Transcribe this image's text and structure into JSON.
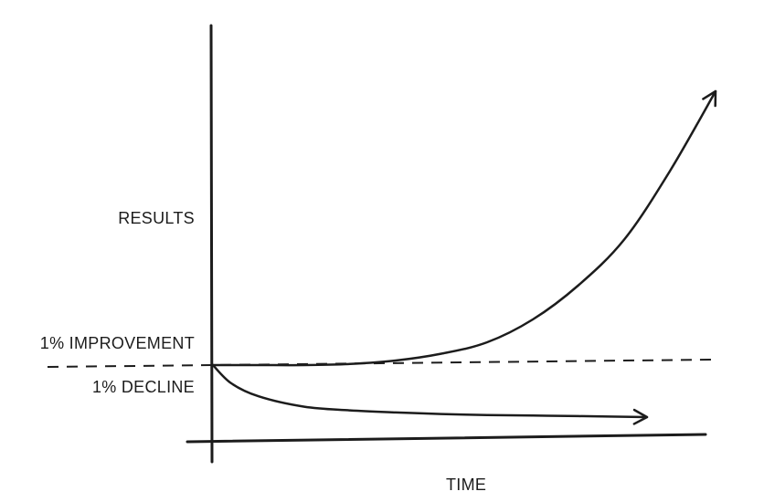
{
  "chart_data": {
    "type": "line",
    "xlabel": "TIME",
    "ylabel": "RESULTS",
    "baseline": 1.0,
    "series": [
      {
        "name": "1% IMPROVEMENT",
        "x": [
          0,
          50,
          100,
          150,
          200,
          250,
          300,
          350,
          400,
          450,
          500,
          550
        ],
        "y": [
          1.0,
          1.0,
          1.0,
          1.05,
          1.2,
          1.5,
          2.0,
          3.0,
          4.5,
          6.5,
          9.5,
          13.0
        ]
      },
      {
        "name": "1% DECLINE",
        "x": [
          0,
          20,
          50,
          100,
          150,
          200,
          250,
          300,
          350,
          400,
          475
        ],
        "y": [
          1.0,
          0.65,
          0.4,
          0.2,
          0.13,
          0.09,
          0.06,
          0.04,
          0.03,
          0.02,
          0.0
        ]
      }
    ],
    "colors": {
      "ink": "#1c1c1c",
      "background": "#ffffff"
    }
  }
}
